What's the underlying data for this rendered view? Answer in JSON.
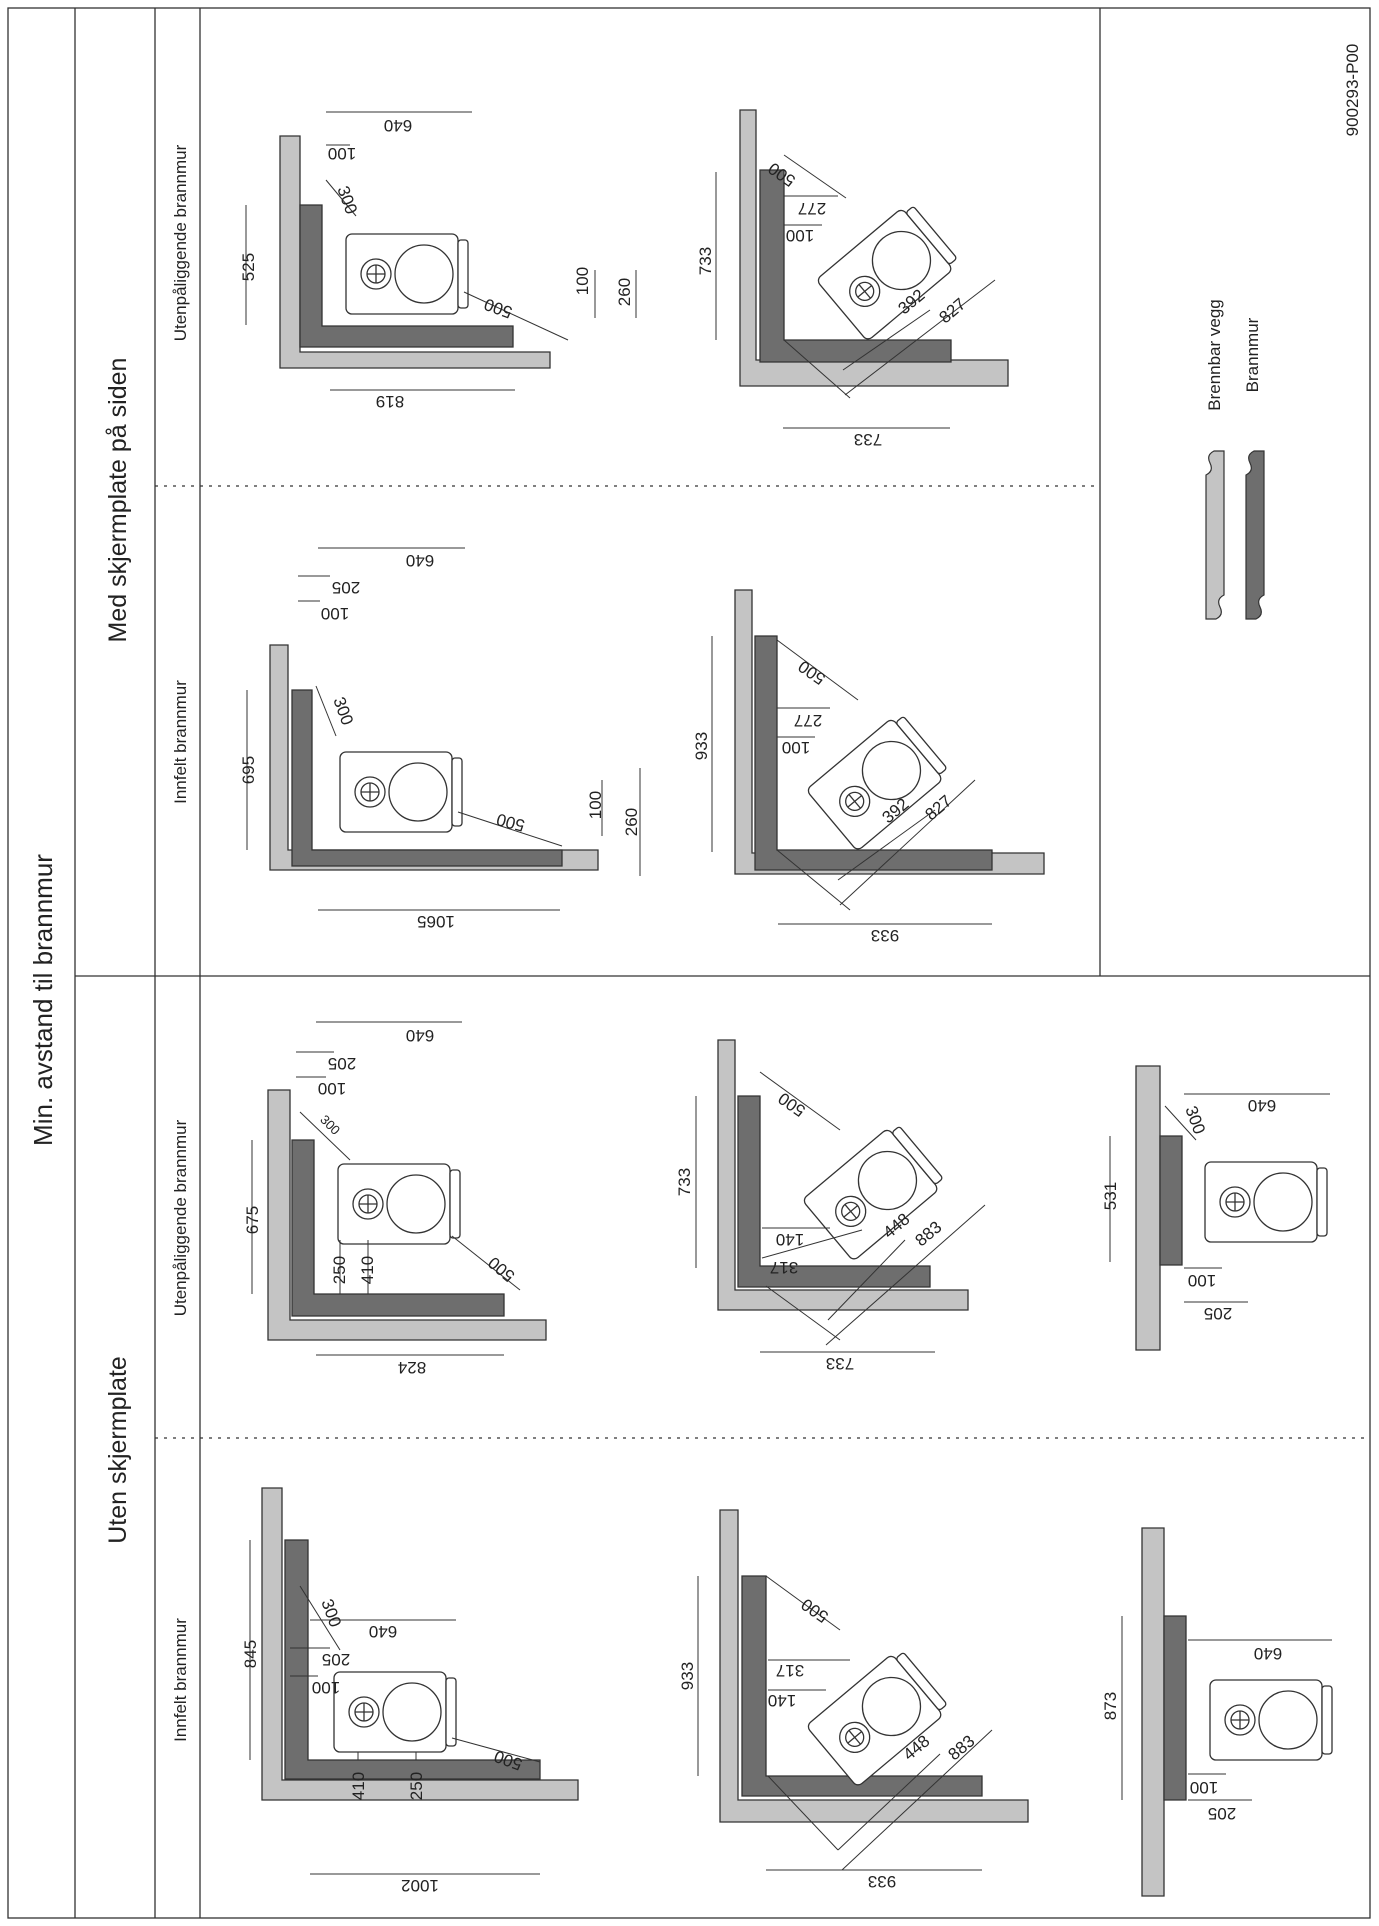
{
  "title": "Min. avstand til brannmur",
  "sections": {
    "with_screen": "Med skjermplate på siden",
    "without_screen": "Uten skjermplate"
  },
  "columns": {
    "outside": "Utenpåliggende brannmur",
    "inset": "Innfelt brannmur"
  },
  "figure_id": "900293-P00",
  "legend": {
    "combustible_wall": "Brennbar vegg",
    "firewall": "Brannmur"
  },
  "colors": {
    "combustible_wall": "#c4c4c4",
    "firewall": "#6e6e6e",
    "line": "#333333"
  },
  "dims": {
    "s1_corner": {
      "d640": "640",
      "d100": "100",
      "d300": "300",
      "d525": "525",
      "d100b": "100",
      "d260": "260",
      "d500": "500",
      "d819": "819"
    },
    "s1_diag": {
      "d500": "500",
      "d733": "733",
      "d277": "277",
      "d100": "100",
      "d392": "392",
      "d827": "827",
      "d733b": "733"
    },
    "s2_corner": {
      "d640": "640",
      "d205": "205",
      "d100": "100",
      "d300": "300",
      "d695": "695",
      "d100b": "100",
      "d260": "260",
      "d500": "500",
      "d1065": "1065"
    },
    "s2_diag": {
      "d500": "500",
      "d933": "933",
      "d277": "277",
      "d100": "100",
      "d392": "392",
      "d827": "827",
      "d933b": "933"
    },
    "s3_corner": {
      "d640": "640",
      "d205": "205",
      "d100": "100",
      "d300": "300",
      "d675": "675",
      "d250": "250",
      "d410": "410",
      "d500": "500",
      "d824": "824"
    },
    "s3_diag": {
      "d500": "500",
      "d733": "733",
      "d140": "140",
      "d317": "317",
      "d448": "448",
      "d883": "883",
      "d733b": "733"
    },
    "s3_flat": {
      "d300": "300",
      "d640": "640",
      "d531": "531",
      "d100": "100",
      "d205": "205"
    },
    "s4_corner": {
      "d640": "640",
      "d205": "205",
      "d100": "100",
      "d300": "300",
      "d845": "845",
      "d410": "410",
      "d250": "250",
      "d500": "500",
      "d1002": "1002"
    },
    "s4_diag": {
      "d500": "500",
      "d933": "933",
      "d317": "317",
      "d140": "140",
      "d448": "448",
      "d883": "883",
      "d933b": "933"
    },
    "s4_flat": {
      "d640": "640",
      "d873": "873",
      "d100": "100",
      "d205": "205"
    }
  }
}
